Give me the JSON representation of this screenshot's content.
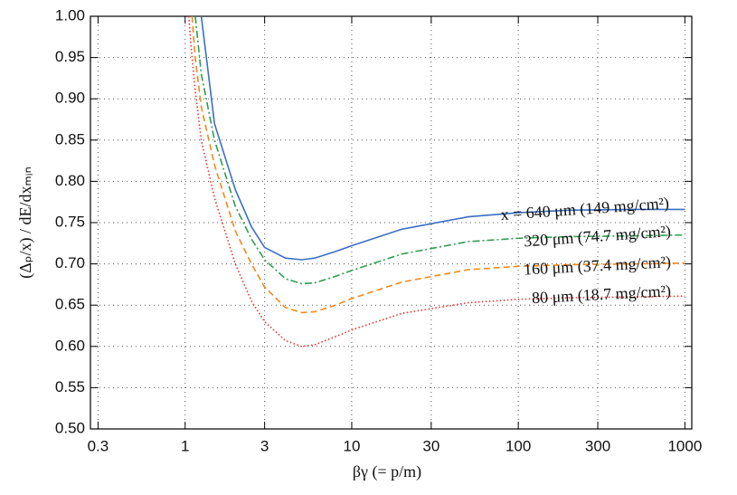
{
  "chart_data": {
    "type": "line",
    "xlabel": "βγ (= p/m)",
    "ylabel": "(Δₚ/x) / dE/dxₘᵢₙ",
    "log_x": true,
    "grid": true,
    "x": [
      1.05,
      1.1,
      1.15,
      1.25,
      1.5,
      2,
      2.5,
      3,
      4,
      5,
      6,
      8,
      10,
      20,
      50,
      100,
      200,
      500,
      1000
    ],
    "series": [
      {
        "name": "x = 640 μm (149 mg/cm²)",
        "color": "#3a6fc4",
        "dash": "none",
        "values": [
          null,
          null,
          null,
          1.0,
          0.87,
          0.79,
          0.745,
          0.72,
          0.707,
          0.705,
          0.707,
          0.715,
          0.722,
          0.742,
          0.757,
          0.762,
          0.765,
          0.766,
          0.766
        ]
      },
      {
        "name": "320 μm (74.7 mg/cm²)",
        "color": "#2e9e4f",
        "dash": "8 3 2 3",
        "values": [
          null,
          null,
          1.0,
          0.93,
          0.85,
          0.77,
          0.73,
          0.705,
          0.682,
          0.676,
          0.677,
          0.685,
          0.692,
          0.712,
          0.727,
          0.731,
          0.733,
          0.734,
          0.735
        ]
      },
      {
        "name": "160 μm (37.4 mg/cm²)",
        "color": "#f08a1c",
        "dash": "7 4",
        "values": [
          null,
          1.0,
          0.95,
          0.89,
          0.82,
          0.74,
          0.7,
          0.672,
          0.647,
          0.641,
          0.642,
          0.65,
          0.658,
          0.678,
          0.693,
          0.697,
          0.699,
          0.7,
          0.701
        ]
      },
      {
        "name": "80 μm (18.7 mg/cm²)",
        "color": "#e8322a",
        "dash": "1.5 2.5",
        "values": [
          1.0,
          0.95,
          0.91,
          0.85,
          0.78,
          0.7,
          0.655,
          0.63,
          0.607,
          0.6,
          0.602,
          0.612,
          0.62,
          0.64,
          0.653,
          0.657,
          0.659,
          0.66,
          0.661
        ]
      }
    ],
    "xlim": [
      0.27,
      1100
    ],
    "ylim": [
      0.5,
      1.0
    ],
    "xticks": [
      0.3,
      1,
      3,
      10,
      30,
      100,
      300,
      1000
    ],
    "yticks": [
      {
        "value": 0.5,
        "label": "0.50"
      },
      {
        "value": 0.55,
        "label": "0.55"
      },
      {
        "value": 0.6,
        "label": "0.60"
      },
      {
        "value": 0.65,
        "label": "0.65"
      },
      {
        "value": 0.7,
        "label": "0.70"
      },
      {
        "value": 0.75,
        "label": "0.75"
      },
      {
        "value": 0.8,
        "label": "0.80"
      },
      {
        "value": 0.85,
        "label": "0.85"
      },
      {
        "value": 0.9,
        "label": "0.90"
      },
      {
        "value": 0.95,
        "label": "0.95"
      },
      {
        "value": 1.0,
        "label": "1.00"
      }
    ]
  }
}
